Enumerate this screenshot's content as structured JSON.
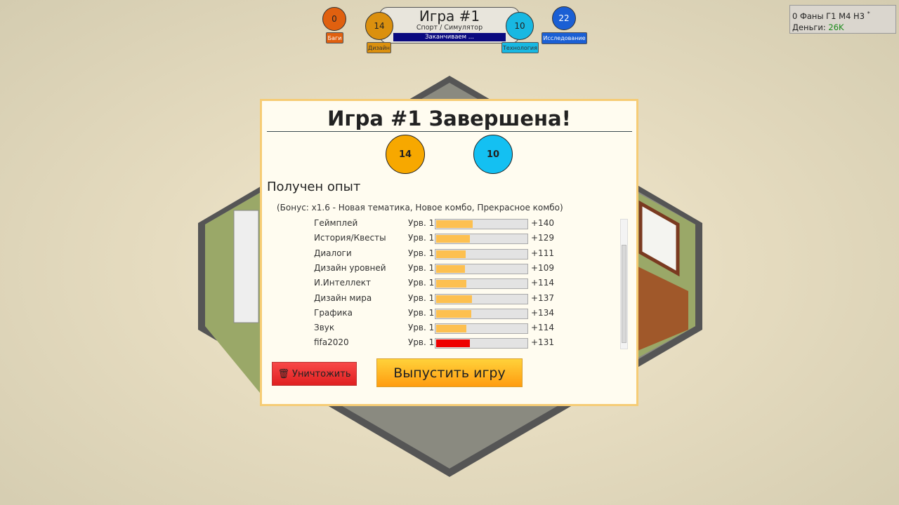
{
  "hud": {
    "bugs": {
      "value": "0",
      "label": "Баги",
      "color": "#e0600f"
    },
    "design": {
      "value": "14",
      "label": "Дизайн",
      "color": "#db900e"
    },
    "tech": {
      "value": "10",
      "label": "Технология",
      "color": "#18b8e2"
    },
    "research": {
      "value": "22",
      "label": "Исследование",
      "color": "#1a5fd4"
    },
    "game_title": "Игра #1",
    "genre": "Спорт / Симулятор",
    "status": "Заканчиваем ..."
  },
  "stats": {
    "fans": "0 Фаны Г1 М4 Н3",
    "star": "*",
    "money_label": "Деньги:",
    "money_value": "26K"
  },
  "dialog": {
    "title": "Игра #1 Завершена!",
    "design_points": "14",
    "tech_points": "10",
    "xp_heading": "Получен опыт",
    "bonus": "(Бонус: x1.6 - Новая тематика, Новое комбо, Прекрасное комбо)",
    "rows": [
      {
        "name": "Геймплей",
        "level": "Урв. 1",
        "progress": 0.4,
        "gain": "+140",
        "color": "#fdc050"
      },
      {
        "name": "История/Квесты",
        "level": "Урв. 1",
        "progress": 0.37,
        "gain": "+129",
        "color": "#fdc050"
      },
      {
        "name": "Диалоги",
        "level": "Урв. 1",
        "progress": 0.32,
        "gain": "+111",
        "color": "#fdc050"
      },
      {
        "name": "Дизайн уровней",
        "level": "Урв. 1",
        "progress": 0.31,
        "gain": "+109",
        "color": "#fdc050"
      },
      {
        "name": "И.Интеллект",
        "level": "Урв. 1",
        "progress": 0.33,
        "gain": "+114",
        "color": "#fdc050"
      },
      {
        "name": "Дизайн мира",
        "level": "Урв. 1",
        "progress": 0.39,
        "gain": "+137",
        "color": "#fdc050"
      },
      {
        "name": "Графика",
        "level": "Урв. 1",
        "progress": 0.38,
        "gain": "+134",
        "color": "#fdc050"
      },
      {
        "name": "Звук",
        "level": "Урв. 1",
        "progress": 0.33,
        "gain": "+114",
        "color": "#fdc050"
      },
      {
        "name": "fifa2020",
        "level": "Урв. 1",
        "progress": 0.37,
        "gain": "+131",
        "color": "#ee0000"
      }
    ],
    "destroy_label": "Уничтожить",
    "release_label": "Выпустить игру"
  }
}
